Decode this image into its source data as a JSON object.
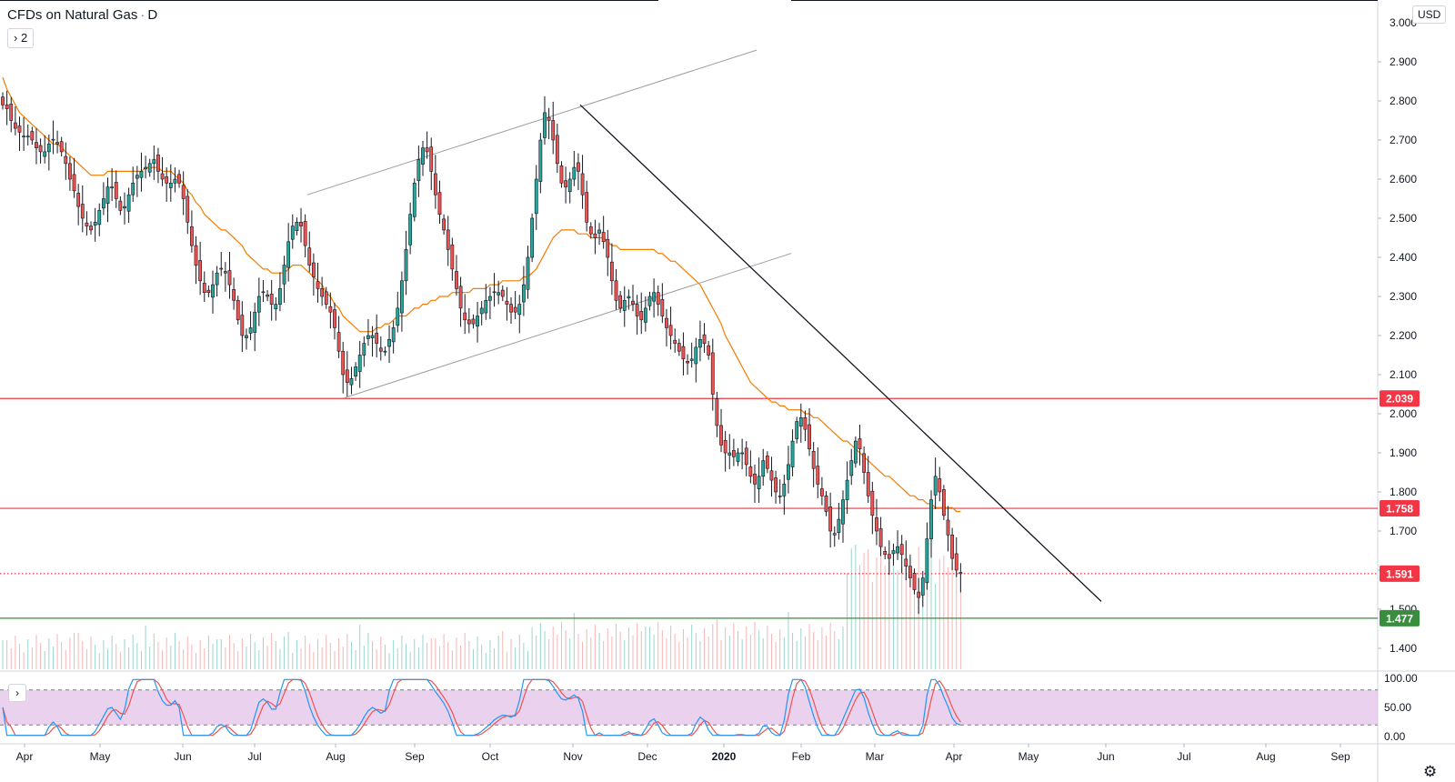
{
  "header": {
    "symbol": "CFDs on Natural Gas",
    "interval": "D",
    "studies_toggle": "2",
    "currency": "USD"
  },
  "icons": {
    "studies_toggle": "chevron-right-icon",
    "oscillator_toggle": "chevron-right-icon",
    "settings": "gear-icon"
  },
  "colors": {
    "up_candle": "#26a69a",
    "down_candle": "#ef5350",
    "moving_average": "#f57c00",
    "horizontal_level_red": "#f23645",
    "horizontal_level_green": "#388e3c",
    "trendline": "#131722",
    "channel": "#9e9e9e",
    "stoch_k": "#2196f3",
    "stoch_d": "#ef5350",
    "stoch_band": "#e1bee7"
  },
  "chart_data": {
    "type": "candlestick",
    "price_axis": {
      "range": [
        1.345,
        3.02
      ],
      "ticks": [
        "2.900",
        "2.800",
        "2.700",
        "2.600",
        "2.500",
        "2.400",
        "2.300",
        "2.200",
        "2.100",
        "2.000",
        "1.900",
        "1.800",
        "1.700",
        "1.600",
        "1.500",
        "1.400"
      ]
    },
    "time_axis": {
      "labels": [
        "Apr",
        "May",
        "Jun",
        "Jul",
        "Aug",
        "Sep",
        "Oct",
        "Nov",
        "Dec",
        "2020",
        "Feb",
        "Mar",
        "Apr",
        "May",
        "Jun",
        "Jul",
        "Aug",
        "Sep"
      ],
      "bold": [
        "2020"
      ]
    },
    "price_labels": [
      {
        "value": 2.039,
        "text": "2.039",
        "kind": "red-line"
      },
      {
        "value": 1.758,
        "text": "1.758",
        "kind": "red-line"
      },
      {
        "value": 1.591,
        "text": "1.591",
        "kind": "last-price"
      },
      {
        "value": 1.477,
        "text": "1.477",
        "kind": "green-line"
      }
    ],
    "closes": [
      2.79,
      2.78,
      2.75,
      2.73,
      2.72,
      2.71,
      2.71,
      2.7,
      2.68,
      2.67,
      2.67,
      2.69,
      2.7,
      2.69,
      2.67,
      2.64,
      2.6,
      2.57,
      2.53,
      2.5,
      2.48,
      2.47,
      2.49,
      2.52,
      2.55,
      2.58,
      2.58,
      2.55,
      2.52,
      2.53,
      2.56,
      2.59,
      2.61,
      2.62,
      2.63,
      2.64,
      2.65,
      2.62,
      2.6,
      2.59,
      2.59,
      2.6,
      2.59,
      2.55,
      2.49,
      2.43,
      2.38,
      2.34,
      2.31,
      2.31,
      2.33,
      2.36,
      2.37,
      2.36,
      2.33,
      2.29,
      2.24,
      2.2,
      2.2,
      2.22,
      2.26,
      2.3,
      2.31,
      2.3,
      2.28,
      2.28,
      2.32,
      2.38,
      2.44,
      2.48,
      2.49,
      2.48,
      2.43,
      2.38,
      2.35,
      2.32,
      2.3,
      2.28,
      2.26,
      2.22,
      2.16,
      2.1,
      2.08,
      2.09,
      2.12,
      2.15,
      2.18,
      2.2,
      2.2,
      2.18,
      2.16,
      2.16,
      2.19,
      2.22,
      2.27,
      2.34,
      2.42,
      2.51,
      2.59,
      2.65,
      2.68,
      2.67,
      2.62,
      2.56,
      2.51,
      2.47,
      2.42,
      2.37,
      2.32,
      2.27,
      2.24,
      2.23,
      2.23,
      2.25,
      2.27,
      2.29,
      2.3,
      2.31,
      2.31,
      2.3,
      2.28,
      2.26,
      2.26,
      2.28,
      2.33,
      2.4,
      2.5,
      2.6,
      2.7,
      2.77,
      2.75,
      2.7,
      2.64,
      2.59,
      2.58,
      2.6,
      2.63,
      2.62,
      2.56,
      2.49,
      2.46,
      2.45,
      2.47,
      2.44,
      2.4,
      2.34,
      2.29,
      2.27,
      2.29,
      2.3,
      2.28,
      2.25,
      2.24,
      2.27,
      2.3,
      2.31,
      2.28,
      2.25,
      2.22,
      2.2,
      2.18,
      2.16,
      2.14,
      2.13,
      2.14,
      2.17,
      2.19,
      2.18,
      2.15,
      2.05,
      1.97,
      1.92,
      1.9,
      1.9,
      1.89,
      1.9,
      1.9,
      1.87,
      1.84,
      1.82,
      1.84,
      1.88,
      1.86,
      1.83,
      1.8,
      1.79,
      1.82,
      1.87,
      1.93,
      1.98,
      1.99,
      1.96,
      1.91,
      1.86,
      1.82,
      1.79,
      1.75,
      1.7,
      1.69,
      1.73,
      1.78,
      1.83,
      1.88,
      1.93,
      1.91,
      1.85,
      1.79,
      1.74,
      1.7,
      1.66,
      1.64,
      1.63,
      1.65,
      1.66,
      1.64,
      1.61,
      1.58,
      1.55,
      1.53,
      1.58,
      1.68,
      1.78,
      1.84,
      1.8,
      1.74,
      1.69,
      1.63,
      1.6,
      1.591
    ],
    "moving_average": [
      2.86,
      2.83,
      2.81,
      2.79,
      2.77,
      2.76,
      2.75,
      2.74,
      2.73,
      2.72,
      2.71,
      2.7,
      2.69,
      2.69,
      2.68,
      2.67,
      2.66,
      2.65,
      2.64,
      2.63,
      2.62,
      2.61,
      2.61,
      2.61,
      2.61,
      2.62,
      2.62,
      2.62,
      2.62,
      2.62,
      2.62,
      2.62,
      2.62,
      2.62,
      2.63,
      2.63,
      2.63,
      2.63,
      2.62,
      2.62,
      2.62,
      2.61,
      2.6,
      2.59,
      2.57,
      2.56,
      2.54,
      2.53,
      2.51,
      2.5,
      2.49,
      2.48,
      2.47,
      2.47,
      2.46,
      2.45,
      2.44,
      2.43,
      2.41,
      2.4,
      2.39,
      2.38,
      2.37,
      2.37,
      2.36,
      2.36,
      2.36,
      2.36,
      2.37,
      2.38,
      2.38,
      2.38,
      2.37,
      2.36,
      2.35,
      2.34,
      2.33,
      2.31,
      2.3,
      2.28,
      2.27,
      2.25,
      2.24,
      2.23,
      2.22,
      2.21,
      2.21,
      2.21,
      2.21,
      2.22,
      2.22,
      2.23,
      2.23,
      2.24,
      2.25,
      2.25,
      2.25,
      2.26,
      2.27,
      2.27,
      2.28,
      2.28,
      2.29,
      2.29,
      2.3,
      2.3,
      2.3,
      2.31,
      2.31,
      2.31,
      2.31,
      2.31,
      2.32,
      2.32,
      2.32,
      2.32,
      2.33,
      2.33,
      2.33,
      2.34,
      2.34,
      2.34,
      2.34,
      2.34,
      2.35,
      2.35,
      2.36,
      2.37,
      2.39,
      2.41,
      2.43,
      2.45,
      2.46,
      2.47,
      2.47,
      2.47,
      2.47,
      2.46,
      2.46,
      2.46,
      2.45,
      2.45,
      2.45,
      2.45,
      2.44,
      2.43,
      2.43,
      2.42,
      2.42,
      2.42,
      2.42,
      2.42,
      2.42,
      2.42,
      2.42,
      2.42,
      2.41,
      2.41,
      2.4,
      2.39,
      2.39,
      2.38,
      2.37,
      2.36,
      2.35,
      2.34,
      2.33,
      2.31,
      2.29,
      2.27,
      2.25,
      2.23,
      2.2,
      2.18,
      2.16,
      2.14,
      2.12,
      2.1,
      2.08,
      2.07,
      2.06,
      2.05,
      2.04,
      2.03,
      2.03,
      2.02,
      2.02,
      2.01,
      2.01,
      2.01,
      2.01,
      2.0,
      2.0,
      1.99,
      1.99,
      1.98,
      1.97,
      1.96,
      1.95,
      1.94,
      1.93,
      1.93,
      1.92,
      1.91,
      1.9,
      1.89,
      1.88,
      1.87,
      1.86,
      1.85,
      1.84,
      1.84,
      1.83,
      1.82,
      1.81,
      1.8,
      1.79,
      1.79,
      1.78,
      1.78,
      1.77,
      1.77,
      1.76,
      1.76,
      1.76,
      1.76,
      1.76,
      1.75,
      1.75
    ],
    "lines": [
      {
        "kind": "horizontal",
        "value": 2.039,
        "color": "red"
      },
      {
        "kind": "horizontal",
        "value": 1.758,
        "color": "red"
      },
      {
        "kind": "horizontal",
        "value": 1.591,
        "color": "red",
        "style": "dotted"
      },
      {
        "kind": "horizontal",
        "value": 1.477,
        "color": "green"
      },
      {
        "kind": "trendline",
        "from": [
          "2019-11-04",
          2.79
        ],
        "to": [
          "2020-05-18",
          1.52
        ]
      },
      {
        "kind": "channel",
        "lower_from": [
          "2019-08-05",
          2.04
        ],
        "lower_to": [
          "2019-11-20",
          2.41
        ],
        "upper_from": [
          "2019-08-01",
          2.56
        ],
        "upper_to": [
          "2019-11-24",
          2.93
        ]
      }
    ],
    "stochastic": {
      "levels": [
        20,
        80
      ],
      "axis_ticks": [
        "100.00",
        "50.00",
        "0.00"
      ]
    }
  }
}
